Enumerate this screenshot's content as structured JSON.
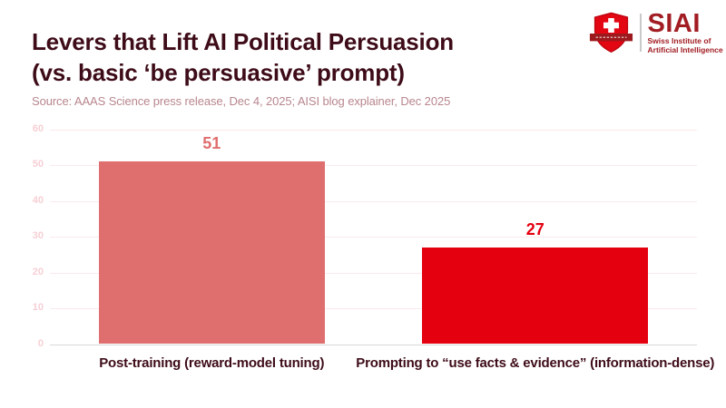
{
  "header": {
    "title_line1": "Levers that Lift AI Political Persuasion",
    "title_line2": "(vs. basic ‘be persuasive’ prompt)"
  },
  "source": "Source: AAAS Science press release, Dec 4, 2025; AISI blog explainer, Dec 2025",
  "logo": {
    "acronym": "SIAI",
    "tagline_line1": "Swiss Institute of",
    "tagline_line2": "Artificial Intelligence",
    "shield_icon": "swiss-shield-icon"
  },
  "colors": {
    "title": "#3E0C18",
    "source_text": "#B8868E",
    "grid": "#FBE9EC",
    "tick_label": "#F6CFD5",
    "baseline": "#D9D9D9",
    "logo_red": "#A21D23",
    "shield_red": "#E30613",
    "ribbon_red": "#9C191D"
  },
  "chart_data": {
    "type": "bar",
    "title": "Levers that Lift AI Political Persuasion (vs. basic ‘be persuasive’ prompt)",
    "categories": [
      "Post-training (reward-model tuning)",
      "Prompting to “use facts & evidence” (information-dense)"
    ],
    "values": [
      51,
      27
    ],
    "value_labels": [
      "51",
      "27"
    ],
    "bar_colors": [
      "#DF6E6E",
      "#E4000F"
    ],
    "xlabel": "",
    "ylabel": "",
    "ylim": [
      0,
      60
    ],
    "yticks": [
      0,
      10,
      20,
      30,
      40,
      50,
      60
    ],
    "grid": true,
    "legend": false
  }
}
